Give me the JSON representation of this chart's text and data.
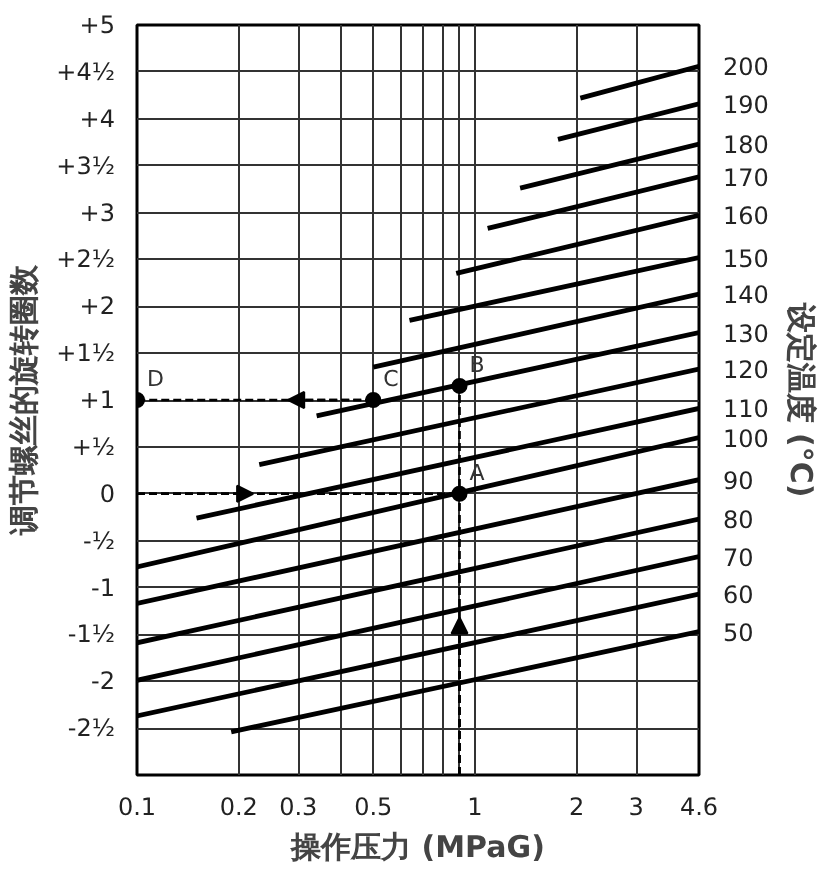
{
  "chart_data": {
    "type": "line",
    "xlabel": "操作压力 (MPaG)",
    "ylabel": "调节螺丝的旋转圈数",
    "y2label": "设定温度 (°C)",
    "log": "x",
    "grid": true,
    "xlim": [
      0.1,
      4.6
    ],
    "xticks": [
      0.1,
      0.2,
      0.3,
      {
        "value": 0.4,
        "label": null
      },
      0.5,
      {
        "value": 0.6,
        "label": null
      },
      {
        "value": 0.7,
        "label": null
      },
      {
        "value": 0.8,
        "label": null
      },
      {
        "value": 0.9,
        "label": null
      },
      1,
      2,
      3,
      4.6
    ],
    "ylim": [
      -3,
      5
    ],
    "yticks": [
      {
        "value": -2.5,
        "label": "-2½"
      },
      {
        "value": -2,
        "label": "-2"
      },
      {
        "value": -1.5,
        "label": "-1½"
      },
      {
        "value": -1,
        "label": "-1"
      },
      {
        "value": -0.5,
        "label": "-½"
      },
      {
        "value": 0,
        "label": "0"
      },
      {
        "value": 0.5,
        "label": "+½"
      },
      {
        "value": 1,
        "label": "+1"
      },
      {
        "value": 1.5,
        "label": "+1½"
      },
      {
        "value": 2,
        "label": "+2"
      },
      {
        "value": 2.5,
        "label": "+2½"
      },
      {
        "value": 3,
        "label": "+3"
      },
      {
        "value": 3.5,
        "label": "+3½"
      },
      {
        "value": 4,
        "label": "+4"
      },
      {
        "value": 4.5,
        "label": "+4½"
      },
      {
        "value": 5,
        "label": "+5"
      }
    ],
    "series": [
      {
        "name": "50",
        "color": "#000000",
        "x": [
          0.19,
          4.6
        ],
        "values": [
          -2.54,
          -1.47
        ]
      },
      {
        "name": "60",
        "color": "#000000",
        "x": [
          0.1,
          4.6
        ],
        "values": [
          -2.37,
          -1.07
        ]
      },
      {
        "name": "70",
        "color": "#000000",
        "x": [
          0.1,
          4.6
        ],
        "values": [
          -1.99,
          -0.67
        ]
      },
      {
        "name": "80",
        "color": "#000000",
        "x": [
          0.1,
          4.6
        ],
        "values": [
          -1.59,
          -0.27
        ]
      },
      {
        "name": "90",
        "color": "#000000",
        "x": [
          0.1,
          4.6
        ],
        "values": [
          -1.17,
          0.15
        ]
      },
      {
        "name": "100",
        "color": "#000000",
        "x": [
          0.1,
          4.6
        ],
        "values": [
          -0.78,
          0.6
        ]
      },
      {
        "name": "110",
        "color": "#000000",
        "x": [
          0.15,
          4.6
        ],
        "values": [
          -0.26,
          0.91
        ]
      },
      {
        "name": "120",
        "color": "#000000",
        "x": [
          0.23,
          4.6
        ],
        "values": [
          0.31,
          1.33
        ]
      },
      {
        "name": "130",
        "color": "#000000",
        "x": [
          0.34,
          4.6
        ],
        "values": [
          0.83,
          1.72
        ]
      },
      {
        "name": "140",
        "color": "#000000",
        "x": [
          0.5,
          4.6
        ],
        "values": [
          1.35,
          2.13
        ]
      },
      {
        "name": "150",
        "color": "#000000",
        "x": [
          0.64,
          4.6
        ],
        "values": [
          1.85,
          2.52
        ]
      },
      {
        "name": "160",
        "color": "#000000",
        "x": [
          0.88,
          4.6
        ],
        "values": [
          2.35,
          2.97
        ]
      },
      {
        "name": "170",
        "color": "#000000",
        "x": [
          1.09,
          4.6
        ],
        "values": [
          2.83,
          3.38
        ]
      },
      {
        "name": "180",
        "color": "#000000",
        "x": [
          1.36,
          4.6
        ],
        "values": [
          3.26,
          3.73
        ]
      },
      {
        "name": "190",
        "color": "#000000",
        "x": [
          1.76,
          4.6
        ],
        "values": [
          3.78,
          4.16
        ]
      },
      {
        "name": "200",
        "color": "#000000",
        "x": [
          2.05,
          4.6
        ],
        "values": [
          4.22,
          4.56
        ]
      },
      {
        "color": "#000000",
        "line_style": "dashed",
        "x": [
          0.1,
          0.9
        ],
        "values": [
          0,
          0
        ]
      },
      {
        "color": "#000000",
        "line_style": "dashed",
        "x": [
          0.9,
          0.9,
          0.9
        ],
        "values": [
          -3,
          0,
          1.15
        ]
      },
      {
        "color": "#000000",
        "line_style": "dashed",
        "x": [
          0.5,
          0.1
        ],
        "values": [
          1,
          1
        ]
      },
      {
        "type": "scatter",
        "marker": "circle",
        "color": "#000000",
        "x": [
          0.9,
          0.9,
          0.5,
          0.1
        ],
        "values": [
          0,
          1.15,
          1,
          1
        ]
      }
    ],
    "annotations": [
      {
        "text": "A",
        "x": 0.9,
        "y": 0
      },
      {
        "text": "B",
        "x": 0.9,
        "y": 1.15
      },
      {
        "text": "C",
        "x": 0.5,
        "y": 1
      },
      {
        "text": "D",
        "x": 0.1,
        "y": 1
      }
    ]
  }
}
